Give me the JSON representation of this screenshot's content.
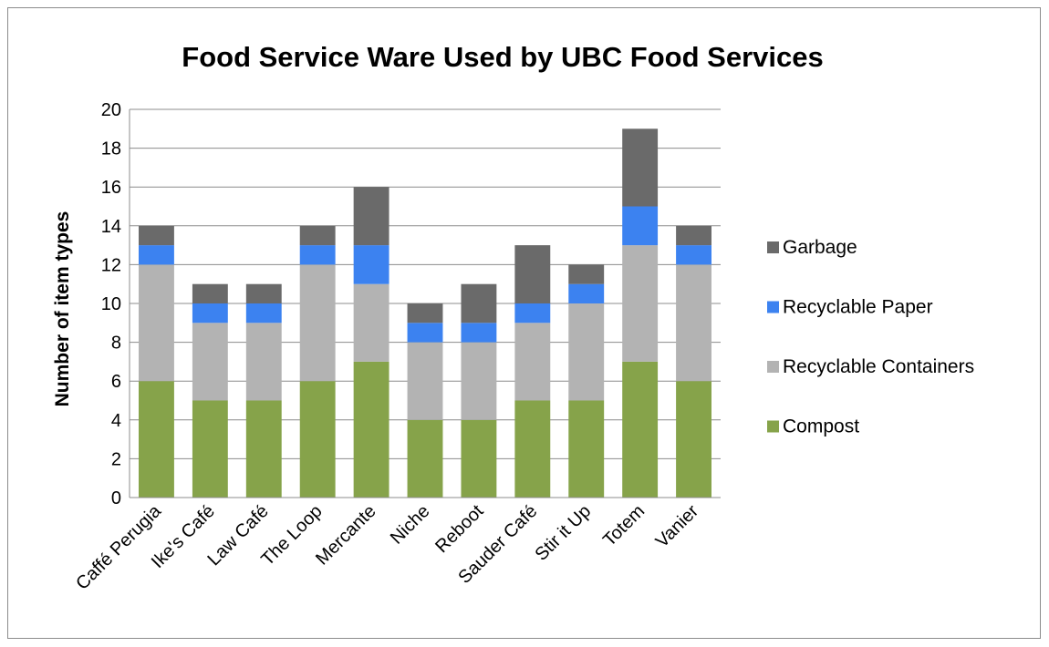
{
  "chart_data": {
    "type": "bar",
    "stacked": true,
    "title": "Food Service Ware Used by UBC Food Services",
    "xlabel": "",
    "ylabel": "Number of item types",
    "ylim": [
      0,
      20
    ],
    "yticks": [
      0,
      2,
      4,
      6,
      8,
      10,
      12,
      14,
      16,
      18,
      20
    ],
    "grid": true,
    "legend_position": "right",
    "categories": [
      "Caffé Perugia",
      "Ike's Café",
      "Law Café",
      "The Loop",
      "Mercante",
      "Niche",
      "Reboot",
      "Sauder Café",
      "Stir it Up",
      "Totem",
      "Vanier"
    ],
    "series": [
      {
        "name": "Compost",
        "color": "#86a34a",
        "values": [
          6,
          5,
          5,
          6,
          7,
          4,
          4,
          5,
          5,
          7,
          6
        ]
      },
      {
        "name": "Recyclable Containers",
        "color": "#b3b3b3",
        "values": [
          6,
          4,
          4,
          6,
          4,
          4,
          4,
          4,
          5,
          6,
          6
        ]
      },
      {
        "name": "Recyclable Paper",
        "color": "#3c82f0",
        "values": [
          1,
          1,
          1,
          1,
          2,
          1,
          1,
          1,
          1,
          2,
          1
        ]
      },
      {
        "name": "Garbage",
        "color": "#6a6a6a",
        "values": [
          1,
          1,
          1,
          1,
          3,
          1,
          2,
          3,
          1,
          4,
          1
        ]
      }
    ]
  }
}
